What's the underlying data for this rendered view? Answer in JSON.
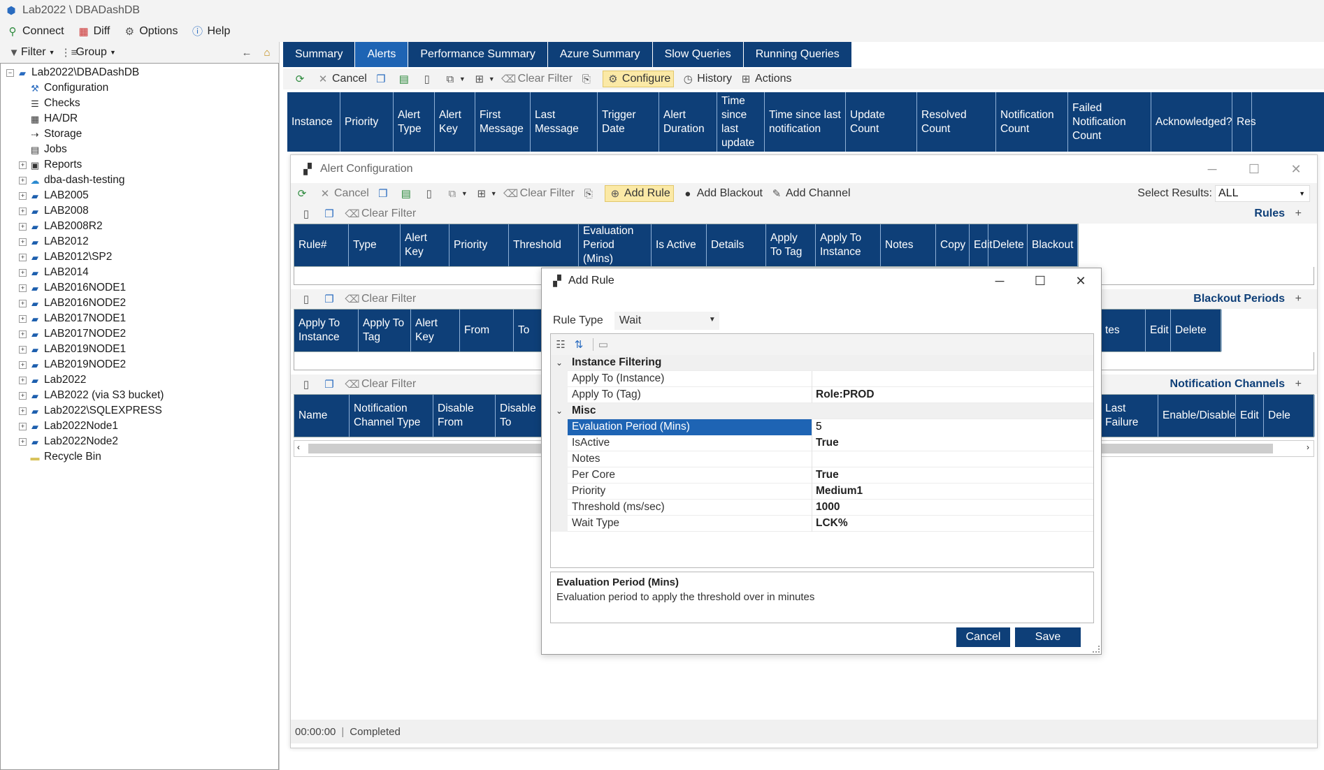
{
  "window": {
    "title": "Lab2022 \\ DBADashDB"
  },
  "menu": {
    "connect": "Connect",
    "diff": "Diff",
    "options": "Options",
    "help": "Help"
  },
  "left_toolbar": {
    "filter": "Filter",
    "group": "Group"
  },
  "tree": {
    "root": "Lab2022\\DBADashDB",
    "items": [
      {
        "label": "Configuration",
        "icon": "config-icon"
      },
      {
        "label": "Checks",
        "icon": "checklist-icon"
      },
      {
        "label": "HA/DR",
        "icon": "hadr-icon"
      },
      {
        "label": "Storage",
        "icon": "storage-icon"
      },
      {
        "label": "Jobs",
        "icon": "jobs-icon"
      },
      {
        "label": "Reports",
        "icon": "reports-icon",
        "expandable": true
      },
      {
        "label": "dba-dash-testing",
        "icon": "cloud-icon",
        "expandable": true
      },
      {
        "label": "LAB2005",
        "icon": "server-icon",
        "expandable": true
      },
      {
        "label": "LAB2008",
        "icon": "server-icon",
        "expandable": true
      },
      {
        "label": "LAB2008R2",
        "icon": "server-icon",
        "expandable": true
      },
      {
        "label": "LAB2012",
        "icon": "server-icon",
        "expandable": true
      },
      {
        "label": "LAB2012\\SP2",
        "icon": "server-icon",
        "expandable": true
      },
      {
        "label": "LAB2014",
        "icon": "server-icon",
        "expandable": true
      },
      {
        "label": "LAB2016NODE1",
        "icon": "server-icon",
        "expandable": true
      },
      {
        "label": "LAB2016NODE2",
        "icon": "server-icon",
        "expandable": true
      },
      {
        "label": "LAB2017NODE1",
        "icon": "server-icon",
        "expandable": true
      },
      {
        "label": "LAB2017NODE2",
        "icon": "server-icon",
        "expandable": true
      },
      {
        "label": "LAB2019NODE1",
        "icon": "server-icon",
        "expandable": true
      },
      {
        "label": "LAB2019NODE2",
        "icon": "server-icon",
        "expandable": true
      },
      {
        "label": "Lab2022",
        "icon": "server-icon",
        "expandable": true
      },
      {
        "label": "LAB2022 (via S3 bucket)",
        "icon": "server-icon",
        "expandable": true
      },
      {
        "label": "Lab2022\\SQLEXPRESS",
        "icon": "server-icon",
        "expandable": true
      },
      {
        "label": "Lab2022Node1",
        "icon": "server-icon",
        "expandable": true
      },
      {
        "label": "Lab2022Node2",
        "icon": "server-icon",
        "expandable": true
      },
      {
        "label": "Recycle Bin",
        "icon": "folder-icon"
      }
    ]
  },
  "tabs": [
    "Summary",
    "Alerts",
    "Performance Summary",
    "Azure Summary",
    "Slow Queries",
    "Running Queries"
  ],
  "active_tab": "Alerts",
  "main_toolbar": {
    "cancel": "Cancel",
    "clear_filter": "Clear Filter",
    "configure": "Configure",
    "history": "History",
    "actions": "Actions"
  },
  "alerts_grid": {
    "columns": [
      "Instance",
      "Priority",
      "Alert Type",
      "Alert Key",
      "First Message",
      "Last Message",
      "Trigger Date",
      "Alert Duration",
      "Time since last update",
      "Time since last notification",
      "Update Count",
      "Resolved Count",
      "Notification Count",
      "Failed Notification Count",
      "Acknowledged?",
      "Res"
    ]
  },
  "alert_config": {
    "title": "Alert Configuration",
    "toolbar": {
      "cancel": "Cancel",
      "clear_filter": "Clear Filter",
      "add_rule": "Add Rule",
      "add_blackout": "Add Blackout",
      "add_channel": "Add Channel",
      "select_results_label": "Select Results:",
      "select_results_value": "ALL"
    },
    "rules": {
      "title": "Rules",
      "clear_filter": "Clear Filter",
      "columns": [
        "Rule#",
        "Type",
        "Alert Key",
        "Priority",
        "Threshold",
        "Evaluation Period (Mins)",
        "Is Active",
        "Details",
        "Apply To Tag",
        "Apply To Instance",
        "Notes",
        "Copy",
        "Edit",
        "Delete",
        "Blackout"
      ]
    },
    "blackout": {
      "title": "Blackout Periods",
      "clear_filter": "Clear Filter",
      "columns_left": [
        "Apply To Instance",
        "Apply To Tag",
        "Alert Key",
        "From",
        "To"
      ],
      "columns_right": [
        "tes",
        "Edit",
        "Delete"
      ]
    },
    "channels": {
      "title": "Notification Channels",
      "clear_filter": "Clear Filter",
      "columns_left": [
        "Name",
        "Notification Channel Type",
        "Disable From",
        "Disable To"
      ],
      "columns_right": [
        "Last Failure",
        "Enable/Disable",
        "Edit",
        "Dele"
      ]
    },
    "status": {
      "time": "00:00:00",
      "text": "Completed"
    }
  },
  "add_rule": {
    "title": "Add Rule",
    "rule_type_label": "Rule Type",
    "rule_type_value": "Wait",
    "categories": [
      {
        "name": "Instance Filtering",
        "props": [
          {
            "name": "Apply To (Instance)",
            "value": ""
          },
          {
            "name": "Apply To (Tag)",
            "value": "Role:PROD"
          }
        ]
      },
      {
        "name": "Misc",
        "props": [
          {
            "name": "Evaluation Period (Mins)",
            "value": "5",
            "selected": true
          },
          {
            "name": "IsActive",
            "value": "True"
          },
          {
            "name": "Notes",
            "value": ""
          },
          {
            "name": "Per Core",
            "value": "True"
          },
          {
            "name": "Priority",
            "value": "Medium1"
          },
          {
            "name": "Threshold (ms/sec)",
            "value": "1000"
          },
          {
            "name": "Wait Type",
            "value": "LCK%"
          }
        ]
      }
    ],
    "help_title": "Evaluation Period (Mins)",
    "help_desc": "Evaluation period to apply the threshold over in minutes",
    "cancel": "Cancel",
    "save": "Save"
  },
  "colors": {
    "header_navy": "#0e3f78",
    "active_tab": "#1e64b4",
    "selection": "#1e64b4",
    "toolbar_bg": "#f3f3f3"
  }
}
